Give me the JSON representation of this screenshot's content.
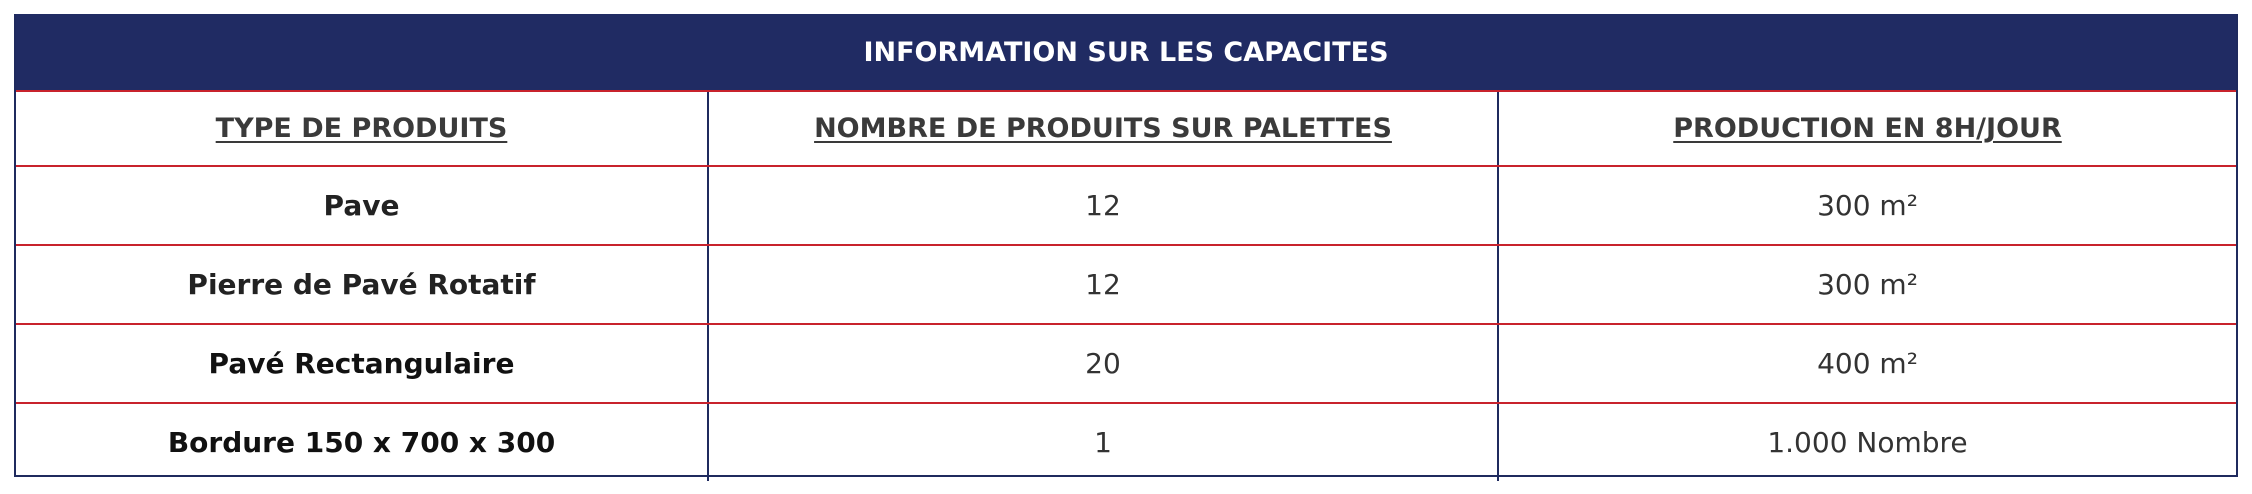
{
  "title": "INFORMATION SUR LES CAPACITES",
  "headers": [
    "TYPE DE PRODUITS",
    "NOMBRE DE PRODUITS SUR PALETTES",
    "PRODUCTION EN 8H/JOUR"
  ],
  "rows": [
    {
      "type": "Pave",
      "count": "12",
      "production": "300 m²"
    },
    {
      "type": "Pierre de Pavé Rotatif",
      "count": "12",
      "production": "300 m²"
    },
    {
      "type": "Pavé Rectangulaire",
      "count": "20",
      "production": "400 m²"
    },
    {
      "type": "Bordure 150 x 700 x 300",
      "count": "1",
      "production": "1.000 Nombre"
    }
  ],
  "colors": {
    "header_background": "#202b63",
    "row_divider": "#c8232c",
    "column_divider": "#1f2a5e"
  }
}
